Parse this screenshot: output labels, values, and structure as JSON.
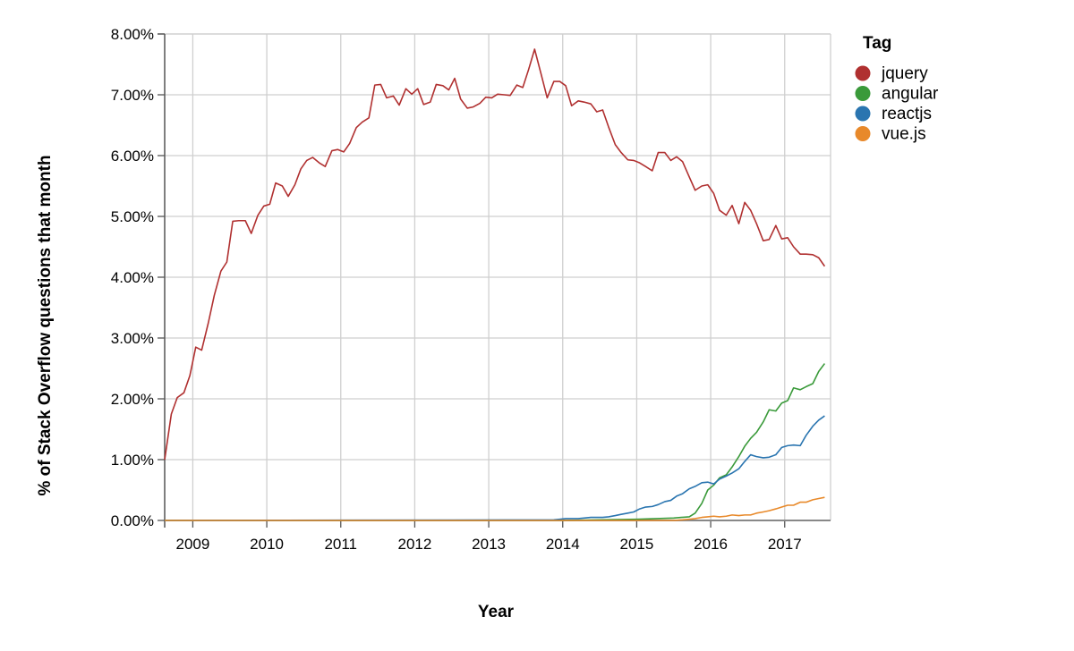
{
  "chart_data": {
    "type": "line",
    "xlabel": "Year",
    "ylabel": "% of Stack Overflow questions that month",
    "xlim": [
      2008.62,
      2017.62
    ],
    "ylim": [
      0,
      8
    ],
    "x_ticks": [
      2009,
      2010,
      2011,
      2012,
      2013,
      2014,
      2015,
      2016,
      2017
    ],
    "y_ticks": [
      "0.00%",
      "1.00%",
      "2.00%",
      "3.00%",
      "4.00%",
      "5.00%",
      "6.00%",
      "7.00%",
      "8.00%"
    ],
    "grid": true,
    "legend": {
      "title": "Tag",
      "position": "top-right",
      "entries": [
        "jquery",
        "angular",
        "reactjs",
        "vue.js"
      ]
    },
    "series": [
      {
        "name": "jquery",
        "color": "#b03030",
        "points": [
          [
            2008.62,
            1.0
          ],
          [
            2008.71,
            1.75
          ],
          [
            2008.79,
            2.02
          ],
          [
            2008.88,
            2.1
          ],
          [
            2008.96,
            2.38
          ],
          [
            2009.04,
            2.85
          ],
          [
            2009.12,
            2.8
          ],
          [
            2009.21,
            3.25
          ],
          [
            2009.29,
            3.7
          ],
          [
            2009.38,
            4.1
          ],
          [
            2009.46,
            4.25
          ],
          [
            2009.54,
            4.92
          ],
          [
            2009.62,
            4.93
          ],
          [
            2009.71,
            4.93
          ],
          [
            2009.79,
            4.72
          ],
          [
            2009.88,
            5.02
          ],
          [
            2009.96,
            5.17
          ],
          [
            2010.04,
            5.2
          ],
          [
            2010.12,
            5.55
          ],
          [
            2010.21,
            5.5
          ],
          [
            2010.29,
            5.33
          ],
          [
            2010.38,
            5.52
          ],
          [
            2010.46,
            5.78
          ],
          [
            2010.54,
            5.92
          ],
          [
            2010.62,
            5.97
          ],
          [
            2010.71,
            5.88
          ],
          [
            2010.79,
            5.82
          ],
          [
            2010.88,
            6.08
          ],
          [
            2010.96,
            6.1
          ],
          [
            2011.04,
            6.06
          ],
          [
            2011.12,
            6.2
          ],
          [
            2011.21,
            6.46
          ],
          [
            2011.29,
            6.55
          ],
          [
            2011.38,
            6.62
          ],
          [
            2011.46,
            7.16
          ],
          [
            2011.54,
            7.17
          ],
          [
            2011.62,
            6.95
          ],
          [
            2011.71,
            6.98
          ],
          [
            2011.79,
            6.83
          ],
          [
            2011.88,
            7.1
          ],
          [
            2011.96,
            7.01
          ],
          [
            2012.04,
            7.1
          ],
          [
            2012.12,
            6.84
          ],
          [
            2012.21,
            6.88
          ],
          [
            2012.29,
            7.17
          ],
          [
            2012.38,
            7.15
          ],
          [
            2012.46,
            7.08
          ],
          [
            2012.54,
            7.27
          ],
          [
            2012.62,
            6.93
          ],
          [
            2012.71,
            6.78
          ],
          [
            2012.79,
            6.8
          ],
          [
            2012.88,
            6.86
          ],
          [
            2012.96,
            6.96
          ],
          [
            2013.04,
            6.95
          ],
          [
            2013.12,
            7.01
          ],
          [
            2013.21,
            7.0
          ],
          [
            2013.29,
            6.99
          ],
          [
            2013.38,
            7.16
          ],
          [
            2013.46,
            7.12
          ],
          [
            2013.54,
            7.42
          ],
          [
            2013.62,
            7.75
          ],
          [
            2013.71,
            7.33
          ],
          [
            2013.79,
            6.95
          ],
          [
            2013.88,
            7.22
          ],
          [
            2013.96,
            7.22
          ],
          [
            2014.04,
            7.15
          ],
          [
            2014.12,
            6.82
          ],
          [
            2014.21,
            6.9
          ],
          [
            2014.29,
            6.88
          ],
          [
            2014.38,
            6.85
          ],
          [
            2014.46,
            6.72
          ],
          [
            2014.54,
            6.75
          ],
          [
            2014.62,
            6.47
          ],
          [
            2014.71,
            6.18
          ],
          [
            2014.79,
            6.05
          ],
          [
            2014.88,
            5.93
          ],
          [
            2014.96,
            5.92
          ],
          [
            2015.04,
            5.88
          ],
          [
            2015.12,
            5.82
          ],
          [
            2015.21,
            5.75
          ],
          [
            2015.29,
            6.05
          ],
          [
            2015.38,
            6.05
          ],
          [
            2015.46,
            5.92
          ],
          [
            2015.54,
            5.98
          ],
          [
            2015.62,
            5.9
          ],
          [
            2015.71,
            5.65
          ],
          [
            2015.79,
            5.43
          ],
          [
            2015.88,
            5.5
          ],
          [
            2015.96,
            5.52
          ],
          [
            2016.04,
            5.38
          ],
          [
            2016.12,
            5.1
          ],
          [
            2016.21,
            5.02
          ],
          [
            2016.29,
            5.18
          ],
          [
            2016.38,
            4.88
          ],
          [
            2016.46,
            5.23
          ],
          [
            2016.54,
            5.1
          ],
          [
            2016.62,
            4.88
          ],
          [
            2016.71,
            4.6
          ],
          [
            2016.79,
            4.62
          ],
          [
            2016.88,
            4.85
          ],
          [
            2016.96,
            4.63
          ],
          [
            2017.04,
            4.65
          ],
          [
            2017.12,
            4.5
          ],
          [
            2017.21,
            4.38
          ],
          [
            2017.29,
            4.38
          ],
          [
            2017.38,
            4.37
          ],
          [
            2017.46,
            4.32
          ],
          [
            2017.54,
            4.18
          ]
        ]
      },
      {
        "name": "angular",
        "color": "#3a9a3a",
        "points": [
          [
            2008.62,
            0.0
          ],
          [
            2014.0,
            0.0
          ],
          [
            2014.5,
            0.01
          ],
          [
            2015.0,
            0.02
          ],
          [
            2015.5,
            0.04
          ],
          [
            2015.71,
            0.06
          ],
          [
            2015.79,
            0.12
          ],
          [
            2015.88,
            0.28
          ],
          [
            2015.96,
            0.5
          ],
          [
            2016.04,
            0.58
          ],
          [
            2016.12,
            0.7
          ],
          [
            2016.21,
            0.75
          ],
          [
            2016.29,
            0.88
          ],
          [
            2016.38,
            1.05
          ],
          [
            2016.46,
            1.22
          ],
          [
            2016.54,
            1.35
          ],
          [
            2016.62,
            1.45
          ],
          [
            2016.71,
            1.62
          ],
          [
            2016.79,
            1.82
          ],
          [
            2016.88,
            1.8
          ],
          [
            2016.96,
            1.93
          ],
          [
            2017.04,
            1.97
          ],
          [
            2017.12,
            2.18
          ],
          [
            2017.21,
            2.15
          ],
          [
            2017.29,
            2.2
          ],
          [
            2017.38,
            2.25
          ],
          [
            2017.46,
            2.45
          ],
          [
            2017.54,
            2.58
          ]
        ]
      },
      {
        "name": "reactjs",
        "color": "#2a75b0",
        "points": [
          [
            2008.62,
            0.0
          ],
          [
            2013.88,
            0.01
          ],
          [
            2013.96,
            0.02
          ],
          [
            2014.04,
            0.03
          ],
          [
            2014.21,
            0.03
          ],
          [
            2014.29,
            0.04
          ],
          [
            2014.38,
            0.05
          ],
          [
            2014.54,
            0.05
          ],
          [
            2014.62,
            0.06
          ],
          [
            2014.71,
            0.08
          ],
          [
            2014.79,
            0.1
          ],
          [
            2014.88,
            0.12
          ],
          [
            2014.96,
            0.14
          ],
          [
            2015.04,
            0.19
          ],
          [
            2015.12,
            0.22
          ],
          [
            2015.21,
            0.23
          ],
          [
            2015.29,
            0.26
          ],
          [
            2015.38,
            0.31
          ],
          [
            2015.46,
            0.33
          ],
          [
            2015.54,
            0.4
          ],
          [
            2015.62,
            0.44
          ],
          [
            2015.71,
            0.52
          ],
          [
            2015.79,
            0.56
          ],
          [
            2015.88,
            0.62
          ],
          [
            2015.96,
            0.63
          ],
          [
            2016.04,
            0.6
          ],
          [
            2016.12,
            0.68
          ],
          [
            2016.21,
            0.73
          ],
          [
            2016.29,
            0.78
          ],
          [
            2016.38,
            0.85
          ],
          [
            2016.46,
            0.97
          ],
          [
            2016.54,
            1.08
          ],
          [
            2016.62,
            1.05
          ],
          [
            2016.71,
            1.03
          ],
          [
            2016.79,
            1.04
          ],
          [
            2016.88,
            1.08
          ],
          [
            2016.96,
            1.2
          ],
          [
            2017.04,
            1.23
          ],
          [
            2017.12,
            1.24
          ],
          [
            2017.21,
            1.23
          ],
          [
            2017.29,
            1.4
          ],
          [
            2017.38,
            1.55
          ],
          [
            2017.46,
            1.65
          ],
          [
            2017.54,
            1.72
          ]
        ]
      },
      {
        "name": "vue.js",
        "color": "#e8892a",
        "points": [
          [
            2008.62,
            0.0
          ],
          [
            2015.5,
            0.0
          ],
          [
            2015.62,
            0.01
          ],
          [
            2015.71,
            0.02
          ],
          [
            2015.79,
            0.03
          ],
          [
            2015.88,
            0.05
          ],
          [
            2015.96,
            0.06
          ],
          [
            2016.04,
            0.07
          ],
          [
            2016.12,
            0.06
          ],
          [
            2016.21,
            0.07
          ],
          [
            2016.29,
            0.09
          ],
          [
            2016.38,
            0.08
          ],
          [
            2016.46,
            0.09
          ],
          [
            2016.54,
            0.09
          ],
          [
            2016.62,
            0.12
          ],
          [
            2016.71,
            0.14
          ],
          [
            2016.79,
            0.16
          ],
          [
            2016.88,
            0.19
          ],
          [
            2016.96,
            0.22
          ],
          [
            2017.04,
            0.25
          ],
          [
            2017.12,
            0.25
          ],
          [
            2017.21,
            0.3
          ],
          [
            2017.29,
            0.3
          ],
          [
            2017.38,
            0.34
          ],
          [
            2017.46,
            0.36
          ],
          [
            2017.54,
            0.38
          ]
        ]
      }
    ]
  }
}
